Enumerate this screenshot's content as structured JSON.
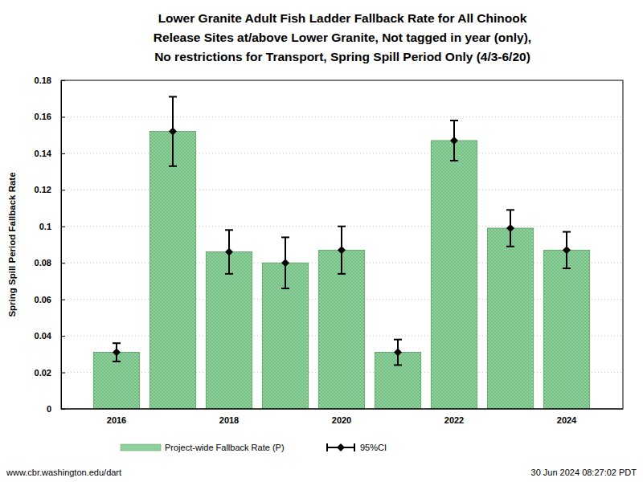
{
  "chart_data": {
    "type": "bar",
    "title": [
      "Lower Granite Adult Fish Ladder Fallback Rate for All Chinook",
      "Release Sites at/above Lower Granite, Not tagged in year (only),",
      "No restrictions for Transport, Spring Spill Period Only (4/3-6/20)"
    ],
    "y_label": "Spring Spill Period Fallback Rate",
    "categories": [
      "2016",
      null,
      "2018",
      null,
      "2020",
      null,
      "2022",
      null,
      "2024"
    ],
    "values": [
      0.031,
      0.152,
      0.086,
      0.08,
      0.087,
      0.031,
      0.147,
      0.099,
      0.087
    ],
    "ci_lower": [
      0.026,
      0.133,
      0.074,
      0.066,
      0.074,
      0.024,
      0.136,
      0.089,
      0.077
    ],
    "ci_upper": [
      0.036,
      0.171,
      0.098,
      0.094,
      0.1,
      0.038,
      0.158,
      0.109,
      0.097
    ],
    "value_name": "Project-wide Fallback Rate (P)",
    "ci_name": "95%CI",
    "color": "#8fd19e",
    "ylim": [
      0,
      0.18
    ],
    "yticks": [
      0,
      0.02,
      0.04,
      0.06,
      0.08,
      0.1,
      0.12,
      0.14,
      0.16,
      0.18
    ],
    "grid": true,
    "legend": "bottom",
    "annotations": [
      "www.cbr.washington.edu/dart",
      "30 Jun 2024 08:27:02 PDT"
    ]
  }
}
